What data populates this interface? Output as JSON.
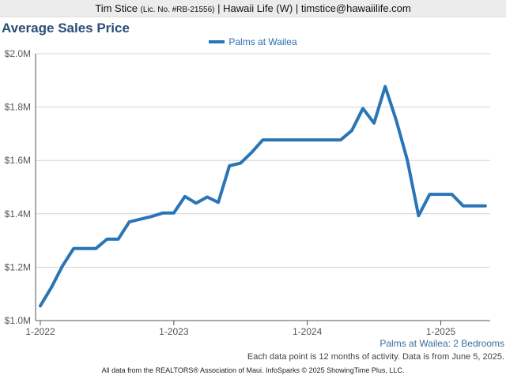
{
  "header": {
    "name": "Tim Stice",
    "license": "(Lic. No. #RB-21556)",
    "rest": "| Hawaii Life (W) | timstice@hawaiilife.com"
  },
  "chart_data": {
    "type": "line",
    "title": "Average Sales Price",
    "subtitle": "Palms at Wailea: 2 Bedrooms",
    "note": "Each data point is 12 months of activity. Data is from June 5, 2025.",
    "x_tick_labels": [
      "1-2022",
      "1-2023",
      "1-2024",
      "1-2025"
    ],
    "y_tick_labels": [
      "$1.0M",
      "$1.2M",
      "$1.4M",
      "$1.6M",
      "$1.8M",
      "$2.0M"
    ],
    "ylim": [
      1000000,
      2000000
    ],
    "y_ticks": [
      1000000,
      1200000,
      1400000,
      1600000,
      1800000,
      2000000
    ],
    "legend_position": "top-center",
    "grid": true,
    "x": [
      "2022-01",
      "2022-02",
      "2022-03",
      "2022-04",
      "2022-05",
      "2022-06",
      "2022-07",
      "2022-08",
      "2022-09",
      "2022-10",
      "2022-11",
      "2022-12",
      "2023-01",
      "2023-02",
      "2023-03",
      "2023-04",
      "2023-05",
      "2023-06",
      "2023-07",
      "2023-08",
      "2023-09",
      "2023-10",
      "2023-11",
      "2023-12",
      "2024-01",
      "2024-02",
      "2024-03",
      "2024-04",
      "2024-05",
      "2024-06",
      "2024-07",
      "2024-08",
      "2024-09",
      "2024-10",
      "2024-11",
      "2024-12",
      "2025-01",
      "2025-02",
      "2025-03",
      "2025-04",
      "2025-05"
    ],
    "series": [
      {
        "name": "Palms at Wailea",
        "color": "#2a75b6",
        "values": [
          1055000,
          1125000,
          1205000,
          1270000,
          1270000,
          1270000,
          1305000,
          1305000,
          1370000,
          1380000,
          1390000,
          1403000,
          1403000,
          1465000,
          1440000,
          1463000,
          1443000,
          1580000,
          1590000,
          1630000,
          1677000,
          1677000,
          1677000,
          1677000,
          1677000,
          1677000,
          1677000,
          1677000,
          1712000,
          1795000,
          1740000,
          1877000,
          1750000,
          1600000,
          1393000,
          1473000,
          1473000,
          1473000,
          1430000,
          1430000,
          1430000
        ]
      }
    ]
  },
  "footer": {
    "text": "All data from the REALTORS® Association of Maui. InfoSparks © 2025 ShowingTime Plus, LLC."
  }
}
